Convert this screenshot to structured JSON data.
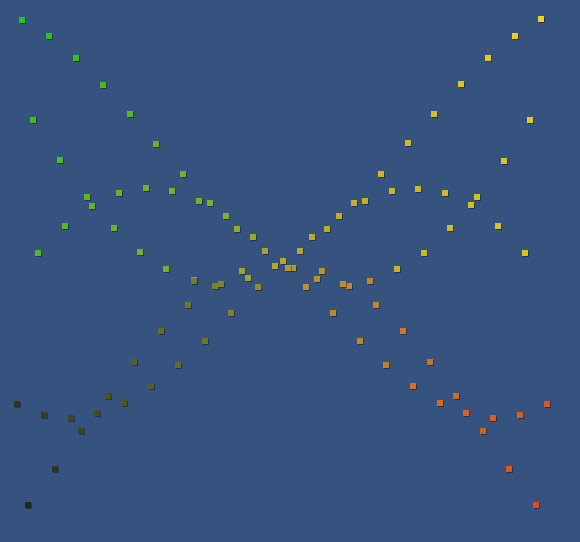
{
  "scene": {
    "background": "#36527f",
    "description_colors": {
      "top_left": "#2bc02b",
      "top_right": "#e6c81e",
      "bottom_left": "#3a3a10",
      "bottom_right": "#e0461e",
      "center": "#a6a028"
    }
  },
  "particle_groups": [
    {
      "name": "top-left-arm",
      "color_from": "#22c41e",
      "color_to": "#a8a52a"
    },
    {
      "name": "top-right-arm",
      "color_from": "#f0d21a",
      "color_to": "#b6a427"
    },
    {
      "name": "bottom-left-arm",
      "color_from": "#1e2a12",
      "color_to": "#9b9a28"
    },
    {
      "name": "bottom-right-arm",
      "color_from": "#e44a1c",
      "color_to": "#b39a30"
    }
  ]
}
